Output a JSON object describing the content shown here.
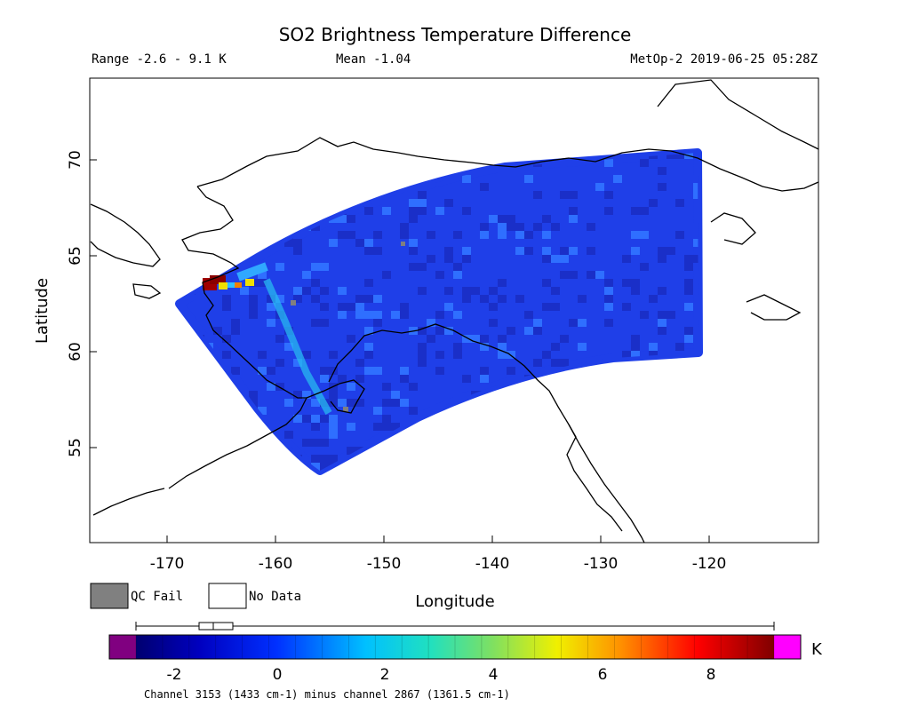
{
  "header": {
    "title": "SO2 Brightness Temperature Difference",
    "range_text": "Range -2.6 - 9.1 K",
    "mean_text": "Mean -1.04",
    "satellite_time": "MetOp-2 2019-06-25 05:28Z"
  },
  "axes": {
    "ylabel": "Latitude",
    "xlabel": "Longitude",
    "y_ticks": [
      "70",
      "65",
      "60",
      "55"
    ],
    "x_ticks": [
      "-170",
      "-160",
      "-150",
      "-140",
      "-130",
      "-120"
    ]
  },
  "legend": {
    "qc_fail_label": "QC Fail",
    "no_data_label": "No Data",
    "qc_fail_color": "#808080",
    "no_data_color": "#ffffff"
  },
  "colorbar": {
    "unit": "K",
    "ticks": [
      "-2",
      "0",
      "2",
      "4",
      "6",
      "8"
    ],
    "range": [
      -2.6,
      9.1
    ],
    "mean": -1.04,
    "underflow_color": "#800080",
    "overflow_color": "#ff00ff",
    "footnote": "Channel 3153 (1433 cm-1) minus channel 2867 (1361.5 cm-1)"
  },
  "swath": {
    "dominant_value_range": [
      -2.6,
      -0.5
    ],
    "hotspot": {
      "lon": -165.5,
      "lat": 63.5,
      "value": 8.5
    },
    "colors": {
      "base": "#1f3fe8",
      "dark": "#1a2fc8",
      "light": "#2f6fff",
      "cyan": "#28c8f0",
      "yellow": "#f0e000",
      "orange": "#f08000",
      "red": "#a00000"
    }
  }
}
